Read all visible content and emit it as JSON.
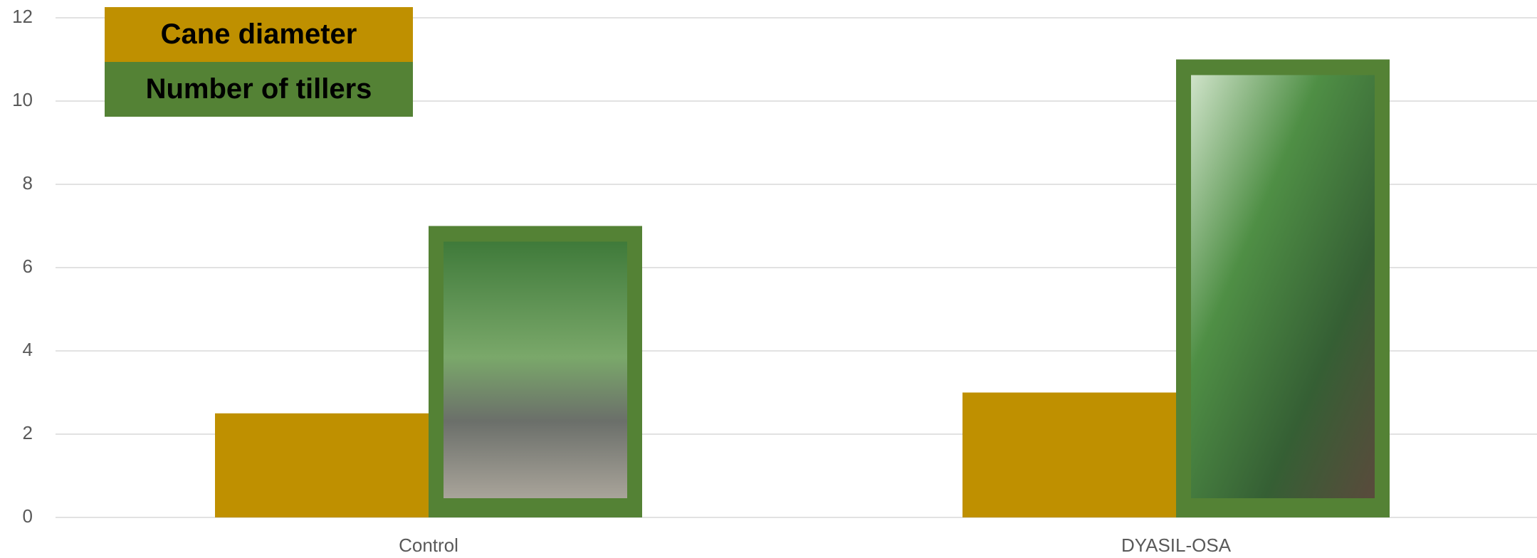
{
  "chart_data": {
    "type": "bar",
    "categories": [
      "Control",
      "DYASIL-OSA"
    ],
    "series": [
      {
        "name": "Cane diameter",
        "color": "#bf9000",
        "values": [
          2.5,
          3
        ]
      },
      {
        "name": "Number of tillers",
        "color": "#548235",
        "values": [
          7,
          11
        ]
      }
    ],
    "ylim": [
      0,
      12
    ],
    "yticks": [
      0,
      2,
      4,
      6,
      8,
      10,
      12
    ],
    "grid": true,
    "legend": "top-left"
  }
}
